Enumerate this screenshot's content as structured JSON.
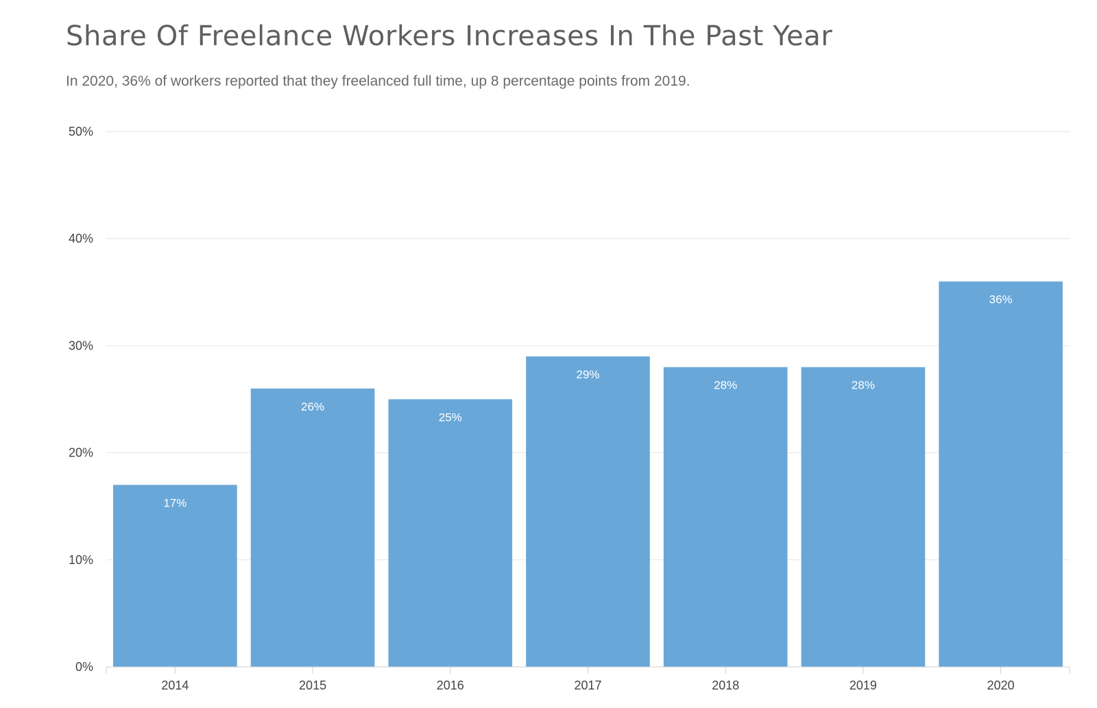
{
  "chart_data": {
    "type": "bar",
    "title": "Share Of Freelance Workers Increases In The Past Year",
    "subtitle": "In 2020, 36% of workers reported that they freelanced full time, up 8 percentage points from 2019.",
    "categories": [
      "2014",
      "2015",
      "2016",
      "2017",
      "2018",
      "2019",
      "2020"
    ],
    "values": [
      17,
      26,
      25,
      29,
      28,
      28,
      36
    ],
    "data_labels": [
      "17%",
      "26%",
      "25%",
      "29%",
      "28%",
      "28%",
      "36%"
    ],
    "y_ticks": [
      0,
      10,
      20,
      30,
      40,
      50
    ],
    "y_tick_labels": [
      "0%",
      "10%",
      "20%",
      "30%",
      "40%",
      "50%"
    ],
    "ylim": [
      0,
      50
    ],
    "xlabel": "",
    "ylabel": "",
    "grid": true,
    "legend": "none",
    "colors": {
      "bar": "#69a7d8",
      "gridline": "#e6e6e6",
      "axis": "#cccccc",
      "data_label": "#ffffff"
    }
  }
}
